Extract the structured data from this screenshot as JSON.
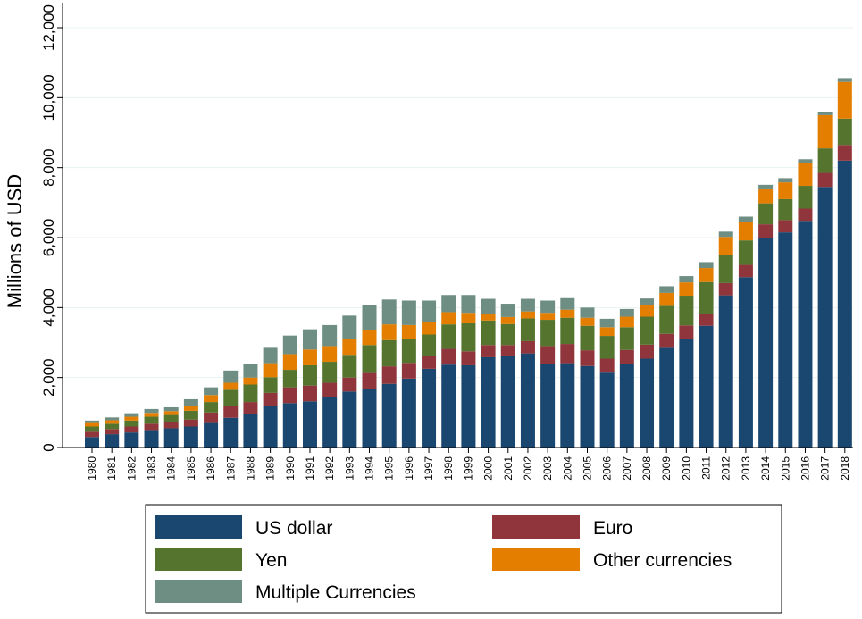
{
  "chart_data": {
    "type": "stacked-bar",
    "y_label": "Millions of USD",
    "categories": [
      "1980",
      "1981",
      "1982",
      "1983",
      "1984",
      "1985",
      "1986",
      "1987",
      "1988",
      "1989",
      "1990",
      "1991",
      "1992",
      "1993",
      "1994",
      "1995",
      "1996",
      "1997",
      "1998",
      "1999",
      "2000",
      "2001",
      "2002",
      "2003",
      "2004",
      "2005",
      "2006",
      "2007",
      "2008",
      "2009",
      "2010",
      "2011",
      "2012",
      "2013",
      "2014",
      "2015",
      "2016",
      "2017",
      "2018"
    ],
    "series": [
      {
        "name": "US dollar",
        "color": "#1a476f",
        "values": [
          300,
          380,
          430,
          500,
          550,
          600,
          700,
          850,
          950,
          1180,
          1270,
          1320,
          1450,
          1600,
          1680,
          1820,
          1970,
          2250,
          2370,
          2350,
          2580,
          2630,
          2690,
          2400,
          2410,
          2330,
          2140,
          2390,
          2540,
          2850,
          3110,
          3480,
          4350,
          4870,
          6000,
          6150,
          6480,
          7450,
          8200
        ]
      },
      {
        "name": "Euro",
        "color": "#90353b",
        "values": [
          150,
          150,
          170,
          180,
          180,
          200,
          300,
          350,
          350,
          380,
          450,
          450,
          400,
          400,
          450,
          500,
          450,
          380,
          450,
          400,
          350,
          300,
          350,
          500,
          550,
          450,
          400,
          400,
          400,
          400,
          380,
          350,
          350,
          350,
          380,
          350,
          350,
          400,
          450
        ]
      },
      {
        "name": "Yen",
        "color": "#55752f",
        "values": [
          150,
          150,
          170,
          200,
          200,
          250,
          300,
          450,
          500,
          450,
          500,
          580,
          600,
          650,
          800,
          750,
          680,
          600,
          700,
          800,
          700,
          600,
          650,
          750,
          750,
          700,
          650,
          650,
          800,
          800,
          850,
          900,
          800,
          700,
          600,
          600,
          650,
          700,
          750
        ]
      },
      {
        "name": "Other currencies",
        "color": "#e37e00",
        "values": [
          100,
          100,
          110,
          110,
          110,
          150,
          200,
          200,
          200,
          400,
          450,
          450,
          450,
          450,
          420,
          450,
          400,
          350,
          350,
          300,
          200,
          200,
          200,
          200,
          230,
          230,
          250,
          300,
          320,
          370,
          380,
          400,
          520,
          540,
          400,
          480,
          650,
          950,
          1050
        ]
      },
      {
        "name": "Multiple Currencies",
        "color": "#6e8e84",
        "values": [
          70,
          80,
          100,
          110,
          110,
          180,
          220,
          350,
          380,
          440,
          530,
          580,
          600,
          670,
          730,
          710,
          700,
          620,
          490,
          510,
          420,
          380,
          360,
          350,
          330,
          290,
          240,
          220,
          200,
          190,
          180,
          170,
          150,
          140,
          130,
          120,
          110,
          100,
          110
        ]
      }
    ],
    "ylim": [
      0,
      12000
    ],
    "yticks": [
      0,
      {
        "value": 2000,
        "label": "2,000"
      },
      {
        "value": 4000,
        "label": "4,000"
      },
      {
        "value": 6000,
        "label": "6,000"
      },
      {
        "value": 8000,
        "label": "8,000"
      },
      {
        "value": 10000,
        "label": "10,000"
      },
      {
        "value": 12000,
        "label": "12,000"
      }
    ],
    "grid": true
  }
}
